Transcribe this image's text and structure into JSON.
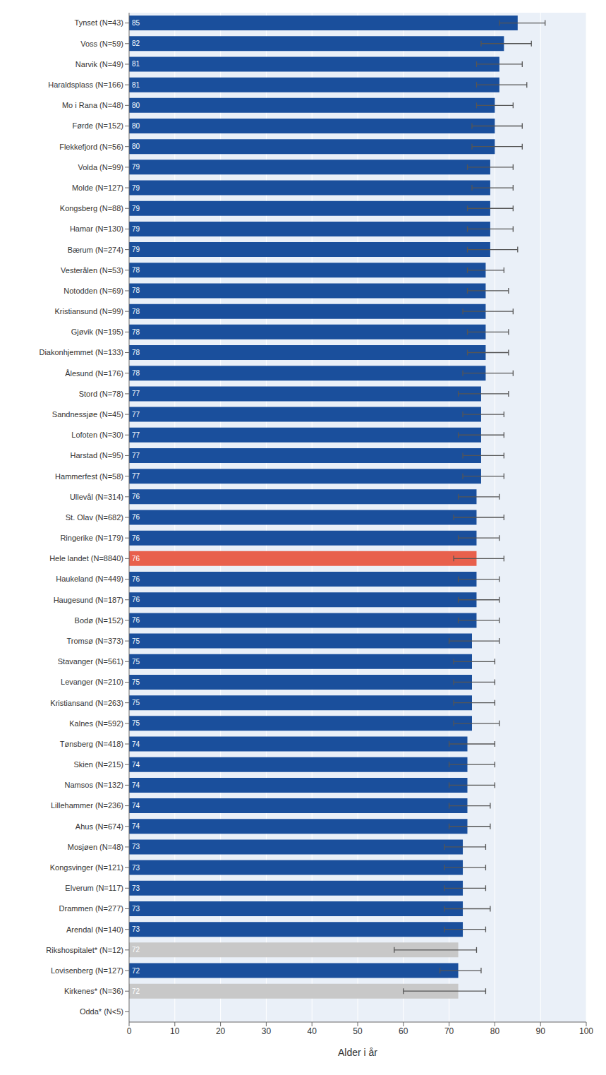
{
  "chart_data": {
    "type": "bar",
    "orientation": "horizontal",
    "xlabel": "Alder i år",
    "categories": [
      "Tynset (N=43)",
      "Voss (N=59)",
      "Narvik (N=49)",
      "Haraldsplass (N=166)",
      "Mo i Rana (N=48)",
      "Førde (N=152)",
      "Flekkefjord (N=56)",
      "Volda (N=99)",
      "Molde (N=127)",
      "Kongsberg (N=88)",
      "Hamar (N=130)",
      "Bærum (N=274)",
      "Vesterålen (N=53)",
      "Notodden (N=69)",
      "Kristiansund (N=99)",
      "Gjøvik (N=195)",
      "Diakonhjemmet (N=133)",
      "Ålesund (N=176)",
      "Stord (N=78)",
      "Sandnessjøe (N=45)",
      "Lofoten (N=30)",
      "Harstad (N=95)",
      "Hammerfest (N=58)",
      "Ullevål (N=314)",
      "St. Olav (N=682)",
      "Ringerike (N=179)",
      "Hele landet (N=8840)",
      "Haukeland (N=449)",
      "Haugesund (N=187)",
      "Bodø (N=152)",
      "Tromsø (N=373)",
      "Stavanger (N=561)",
      "Levanger (N=210)",
      "Kristiansand (N=263)",
      "Kalnes (N=592)",
      "Tønsberg (N=418)",
      "Skien (N=215)",
      "Namsos (N=132)",
      "Lillehammer (N=236)",
      "Ahus (N=674)",
      "Mosjøen (N=48)",
      "Kongsvinger (N=121)",
      "Elverum (N=117)",
      "Drammen (N=277)",
      "Arendal (N=140)",
      "Rikshospitalet* (N=12)",
      "Lovisenberg (N=127)",
      "Kirkenes* (N=36)",
      "Odda* (N<5)"
    ],
    "values": [
      85,
      82,
      81,
      81,
      80,
      80,
      80,
      79,
      79,
      79,
      79,
      79,
      78,
      78,
      78,
      78,
      78,
      78,
      77,
      77,
      77,
      77,
      77,
      76,
      76,
      76,
      76,
      76,
      76,
      76,
      75,
      75,
      75,
      75,
      75,
      74,
      74,
      74,
      74,
      74,
      73,
      73,
      73,
      73,
      73,
      72,
      72,
      72,
      0
    ],
    "value_labels": [
      "85",
      "82",
      "81",
      "81",
      "80",
      "80",
      "80",
      "79",
      "79",
      "79",
      "79",
      "79",
      "78",
      "78",
      "78",
      "78",
      "78",
      "78",
      "77",
      "77",
      "77",
      "77",
      "77",
      "76",
      "76",
      "76",
      "76",
      "76",
      "76",
      "76",
      "75",
      "75",
      "75",
      "75",
      "75",
      "74",
      "74",
      "74",
      "74",
      "74",
      "73",
      "73",
      "73",
      "73",
      "73",
      "72",
      "72",
      "72",
      null
    ],
    "err_low": [
      4,
      5,
      5,
      5,
      4,
      5,
      5,
      5,
      4,
      5,
      5,
      5,
      4,
      4,
      5,
      4,
      4,
      5,
      5,
      4,
      5,
      4,
      4,
      4,
      5,
      4,
      5,
      4,
      4,
      4,
      5,
      4,
      4,
      4,
      4,
      4,
      4,
      4,
      4,
      4,
      4,
      4,
      4,
      4,
      4,
      14,
      4,
      12,
      0
    ],
    "err_high": [
      6,
      6,
      5,
      6,
      4,
      6,
      6,
      5,
      5,
      5,
      5,
      6,
      4,
      5,
      6,
      5,
      5,
      6,
      6,
      5,
      5,
      5,
      5,
      5,
      6,
      5,
      6,
      5,
      5,
      5,
      6,
      5,
      5,
      5,
      6,
      6,
      6,
      6,
      5,
      5,
      5,
      5,
      5,
      6,
      5,
      4,
      5,
      6,
      0
    ],
    "colors": [
      "#1a4f9c",
      "#1a4f9c",
      "#1a4f9c",
      "#1a4f9c",
      "#1a4f9c",
      "#1a4f9c",
      "#1a4f9c",
      "#1a4f9c",
      "#1a4f9c",
      "#1a4f9c",
      "#1a4f9c",
      "#1a4f9c",
      "#1a4f9c",
      "#1a4f9c",
      "#1a4f9c",
      "#1a4f9c",
      "#1a4f9c",
      "#1a4f9c",
      "#1a4f9c",
      "#1a4f9c",
      "#1a4f9c",
      "#1a4f9c",
      "#1a4f9c",
      "#1a4f9c",
      "#1a4f9c",
      "#1a4f9c",
      "#e8604c",
      "#1a4f9c",
      "#1a4f9c",
      "#1a4f9c",
      "#1a4f9c",
      "#1a4f9c",
      "#1a4f9c",
      "#1a4f9c",
      "#1a4f9c",
      "#1a4f9c",
      "#1a4f9c",
      "#1a4f9c",
      "#1a4f9c",
      "#1a4f9c",
      "#1a4f9c",
      "#1a4f9c",
      "#1a4f9c",
      "#1a4f9c",
      "#1a4f9c",
      "#c8c8c8",
      "#1a4f9c",
      "#c8c8c8",
      "#ffffff"
    ],
    "xlim": [
      0,
      100
    ],
    "xticks": [
      0,
      10,
      20,
      30,
      40,
      50,
      60,
      70,
      80,
      90,
      100
    ],
    "grid": true,
    "data_labels": true
  }
}
